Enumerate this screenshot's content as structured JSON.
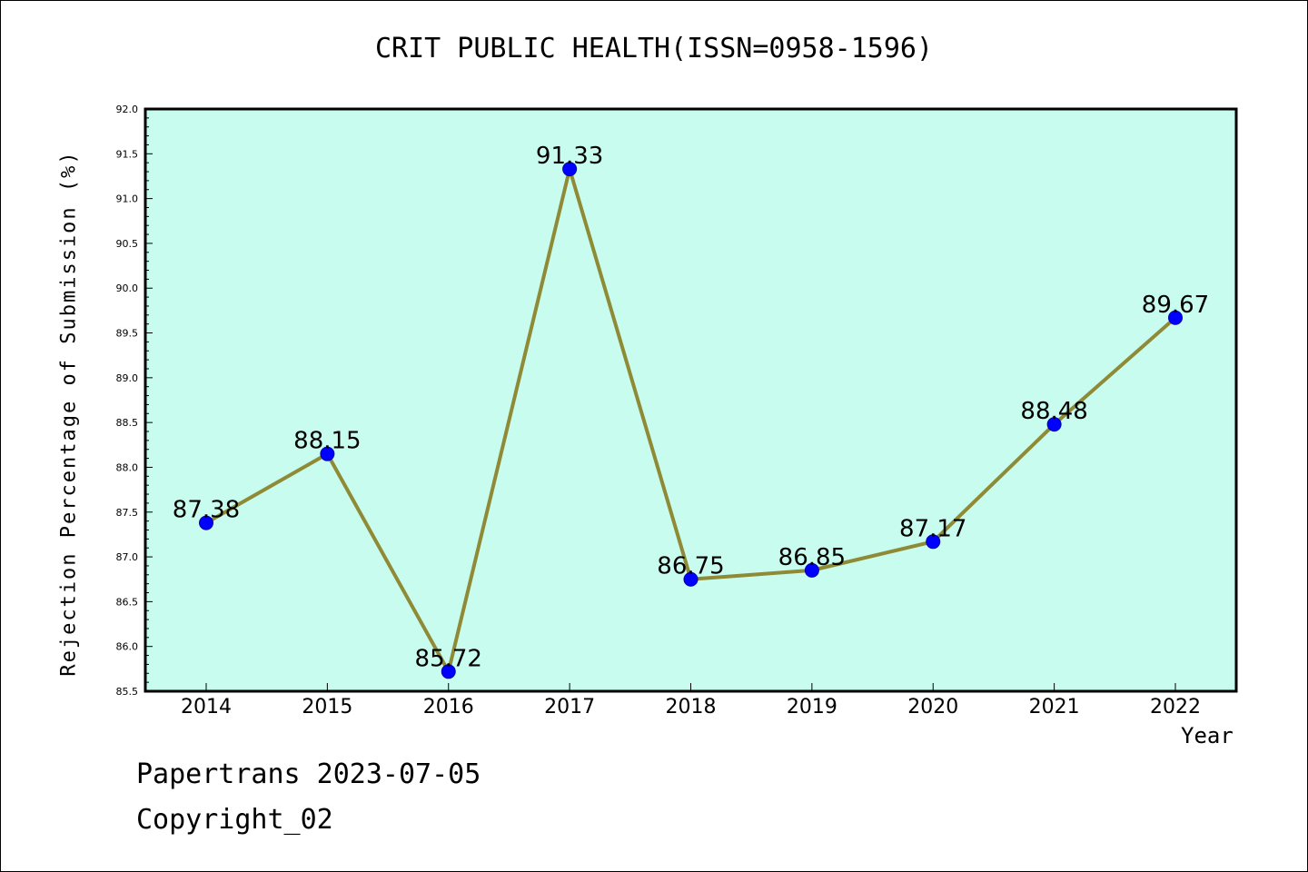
{
  "chart_data": {
    "type": "line",
    "title": "CRIT PUBLIC HEALTH(ISSN=0958-1596)",
    "xlabel": "Year",
    "ylabel": "Rejection Percentage of Submission (%)",
    "categories": [
      "2014",
      "2015",
      "2016",
      "2017",
      "2018",
      "2019",
      "2020",
      "2021",
      "2022"
    ],
    "series": [
      {
        "values": [
          87.38,
          88.15,
          85.72,
          91.33,
          86.75,
          86.85,
          87.17,
          88.48,
          89.67
        ],
        "data_labels": [
          "87.38",
          "88.15",
          "85.72",
          "91.33",
          "86.75",
          "86.85",
          "87.17",
          "88.48",
          "89.67"
        ]
      }
    ],
    "ylim": [
      85.5,
      92.0
    ],
    "yticks": [
      "85.5",
      "86.0",
      "86.5",
      "87.0",
      "87.5",
      "88.0",
      "88.5",
      "89.0",
      "89.5",
      "90.0",
      "90.5",
      "91.0",
      "91.5",
      "92.0"
    ],
    "grid": false,
    "colors": {
      "plot_background": "#c8fcee",
      "line": "#8f8a35",
      "marker": "#0000ff"
    }
  },
  "footer": {
    "line1": "Papertrans 2023-07-05",
    "line2": "Copyright_02"
  }
}
